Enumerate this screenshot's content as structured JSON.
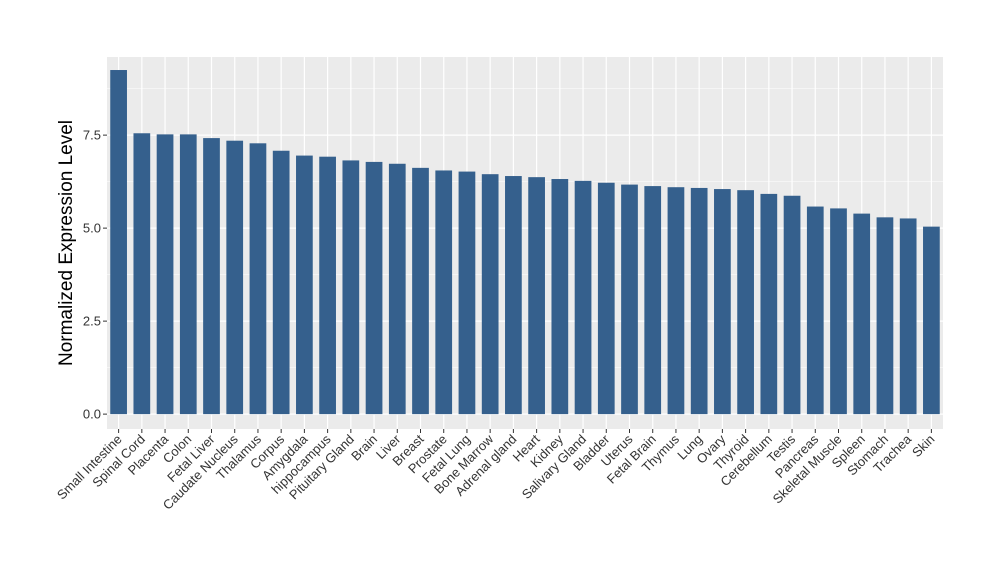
{
  "chart_data": {
    "type": "bar",
    "title": "",
    "xlabel": "",
    "ylabel": "Normalized Expression Level",
    "ylim": [
      -0.4,
      9.6
    ],
    "yticks": [
      0.0,
      2.5,
      5.0,
      7.5
    ],
    "ytick_labels": [
      "0.0",
      "2.5",
      "5.0",
      "7.5"
    ],
    "grid": true,
    "legend": "none",
    "bar_color": "#35608D",
    "panel_color": "#EBEBEB",
    "grid_color": "#FFFFFF",
    "categories": [
      "Small Intestine",
      "Spinal Cord",
      "Placenta",
      "Colon",
      "Fetal Liver",
      "Caudate Nucleus",
      "Thalamus",
      "Corpus",
      "Amygdala",
      "hippocampus",
      "Pituitary Gland",
      "Brain",
      "Liver",
      "Breast",
      "Prostate",
      "Fetal Lung",
      "Bone Marrow",
      "Adrenal gland",
      "Heart",
      "Kidney",
      "Salivary Gland",
      "Bladder",
      "Uterus",
      "Fetal Brain",
      "Thymus",
      "Lung",
      "Ovary",
      "Thyroid",
      "Cerebellum",
      "Testis",
      "Pancreas",
      "Skeletal Muscle",
      "Spleen",
      "Stomach",
      "Trachea",
      "Skin"
    ],
    "values": [
      9.25,
      7.55,
      7.52,
      7.52,
      7.42,
      7.35,
      7.28,
      7.08,
      6.95,
      6.92,
      6.82,
      6.78,
      6.73,
      6.62,
      6.55,
      6.52,
      6.45,
      6.4,
      6.37,
      6.32,
      6.27,
      6.22,
      6.17,
      6.13,
      6.1,
      6.08,
      6.05,
      6.02,
      5.92,
      5.87,
      5.58,
      5.53,
      5.39,
      5.29,
      5.26,
      5.04
    ]
  }
}
